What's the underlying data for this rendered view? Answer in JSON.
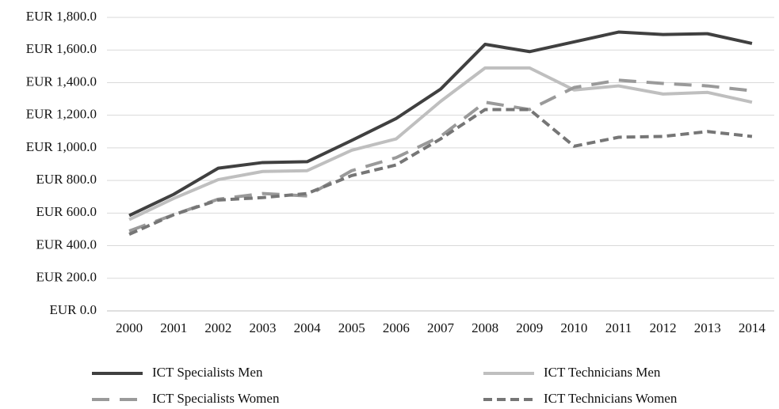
{
  "chart_data": {
    "type": "line",
    "categories": [
      "2000",
      "2001",
      "2002",
      "2003",
      "2004",
      "2005",
      "2006",
      "2007",
      "2008",
      "2009",
      "2010",
      "2011",
      "2012",
      "2013",
      "2014"
    ],
    "series": [
      {
        "name": "ICT Specialists Men",
        "color": "#404040",
        "style": "solid",
        "values": [
          585,
          715,
          875,
          910,
          915,
          1045,
          1180,
          1360,
          1635,
          1590,
          1650,
          1710,
          1695,
          1700,
          1640
        ]
      },
      {
        "name": "ICT Technicians Men",
        "color": "#bfbfbf",
        "style": "solid",
        "values": [
          560,
          690,
          805,
          855,
          860,
          985,
          1055,
          1285,
          1490,
          1490,
          1355,
          1380,
          1330,
          1340,
          1280
        ]
      },
      {
        "name": "ICT Specialists Women",
        "color": "#9a9a9a",
        "style": "long-dash",
        "values": [
          490,
          590,
          685,
          720,
          705,
          860,
          940,
          1070,
          1280,
          1235,
          1370,
          1415,
          1395,
          1380,
          1350
        ]
      },
      {
        "name": "ICT Technicians Women",
        "color": "#767676",
        "style": "short-dash",
        "values": [
          470,
          590,
          680,
          695,
          720,
          830,
          895,
          1055,
          1235,
          1235,
          1010,
          1065,
          1070,
          1100,
          1070
        ]
      }
    ],
    "ylim": [
      0,
      1800
    ],
    "yticks": [
      {
        "value": 0,
        "label": "EUR 0.0"
      },
      {
        "value": 200,
        "label": "EUR 200.0"
      },
      {
        "value": 400,
        "label": "EUR 400.0"
      },
      {
        "value": 600,
        "label": "EUR 600.0"
      },
      {
        "value": 800,
        "label": "EUR 800.0"
      },
      {
        "value": 1000,
        "label": "EUR 1,000.0"
      },
      {
        "value": 1200,
        "label": "EUR 1,200.0"
      },
      {
        "value": 1400,
        "label": "EUR 1,400.0"
      },
      {
        "value": 1600,
        "label": "EUR 1,600.0"
      },
      {
        "value": 1800,
        "label": "EUR 1,800.0"
      }
    ],
    "grid": true,
    "legend": "bottom"
  }
}
